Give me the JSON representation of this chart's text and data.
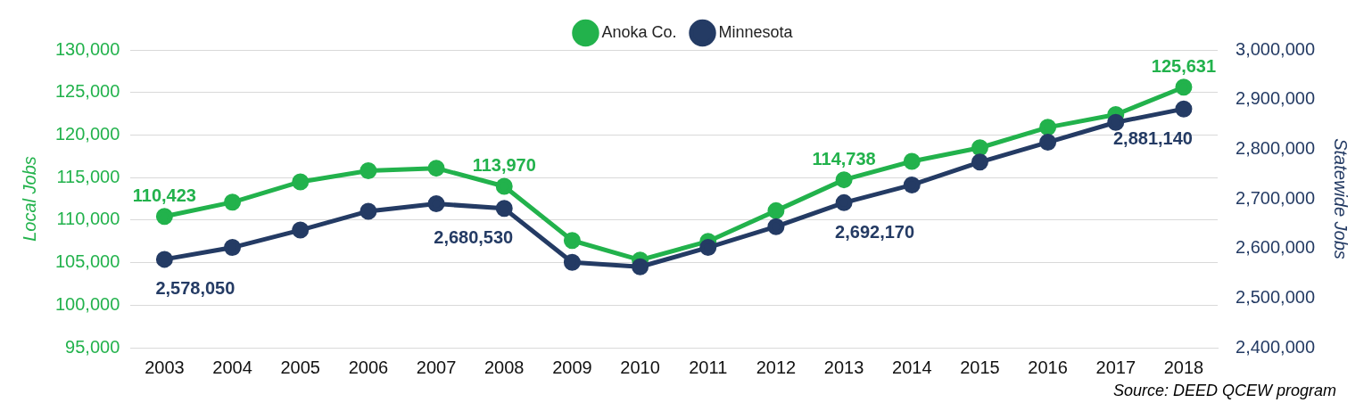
{
  "chart_data": {
    "type": "line",
    "categories": [
      "2003",
      "2004",
      "2005",
      "2006",
      "2007",
      "2008",
      "2009",
      "2010",
      "2011",
      "2012",
      "2013",
      "2014",
      "2015",
      "2016",
      "2017",
      "2018"
    ],
    "series": [
      {
        "name": "Anoka Co.",
        "color": "#22b24c",
        "values": [
          110423,
          112100,
          114500,
          115800,
          116100,
          113970,
          107600,
          105300,
          107500,
          111100,
          114738,
          116900,
          118500,
          120900,
          122400,
          125631
        ],
        "value_labels": [
          "110,423",
          null,
          null,
          null,
          null,
          "113,970",
          null,
          null,
          null,
          null,
          "114,738",
          null,
          null,
          null,
          null,
          "125,631"
        ]
      },
      {
        "name": "Minnesota",
        "color": "#243b64",
        "axis": "y2",
        "values": [
          2578050,
          2602000,
          2637000,
          2675000,
          2690000,
          2680530,
          2572000,
          2563000,
          2602000,
          2644000,
          2692170,
          2728000,
          2774000,
          2814000,
          2854000,
          2881140
        ],
        "value_labels": [
          "2,578,050",
          null,
          null,
          null,
          null,
          "2,680,530",
          null,
          null,
          null,
          null,
          "2,692,170",
          null,
          null,
          null,
          null,
          "2,881,140"
        ]
      }
    ],
    "ylim": [
      95000,
      130000
    ],
    "yticks": [
      {
        "value": 95000,
        "label": "95,000"
      },
      {
        "value": 100000,
        "label": "100,000"
      },
      {
        "value": 105000,
        "label": "105,000"
      },
      {
        "value": 110000,
        "label": "110,000"
      },
      {
        "value": 115000,
        "label": "115,000"
      },
      {
        "value": 120000,
        "label": "120,000"
      },
      {
        "value": 125000,
        "label": "125,000"
      },
      {
        "value": 130000,
        "label": "130,000"
      }
    ],
    "y2lim": [
      2400000,
      3000000
    ],
    "y2ticks": [
      {
        "value": 2400000,
        "label": "2,400,000"
      },
      {
        "value": 2500000,
        "label": "2,500,000"
      },
      {
        "value": 2600000,
        "label": "2,600,000"
      },
      {
        "value": 2700000,
        "label": "2,700,000"
      },
      {
        "value": 2800000,
        "label": "2,800,000"
      },
      {
        "value": 2900000,
        "label": "2,900,000"
      },
      {
        "value": 3000000,
        "label": "3,000,000"
      }
    ],
    "ylabel": "Local Jobs",
    "y2label": "Statewide Jobs",
    "grid": "y",
    "legend": "top",
    "marker": "circle",
    "line_style": "solid",
    "annotations": [
      "Source: DEED QCEW program"
    ]
  }
}
